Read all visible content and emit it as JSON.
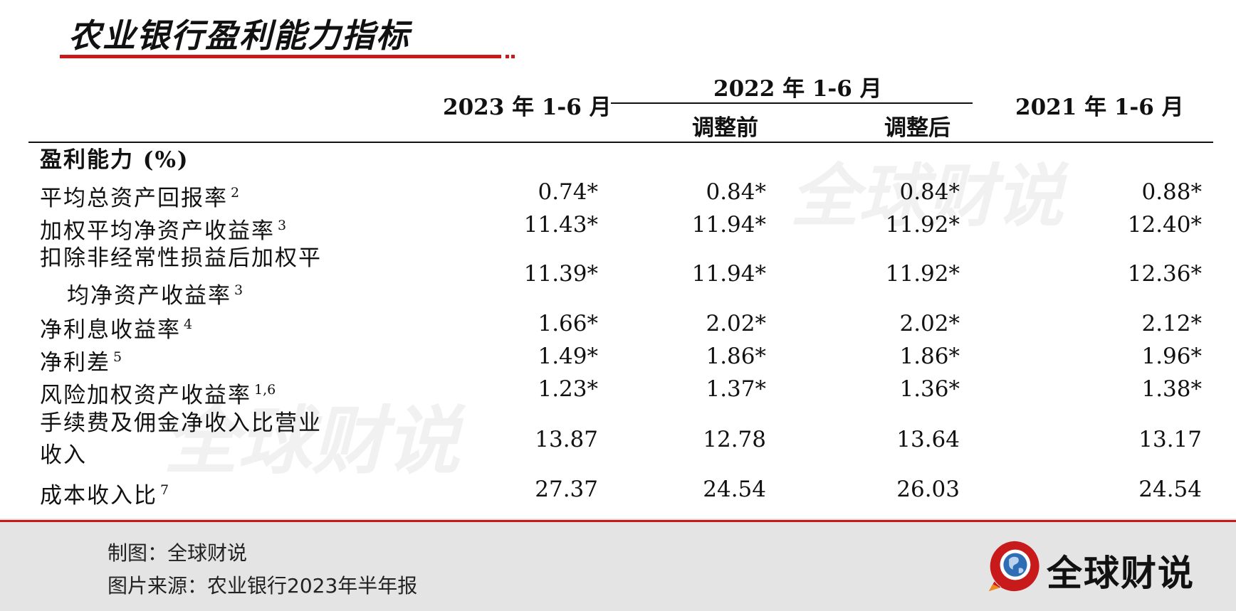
{
  "title": "农业银行盈利能力指标",
  "watermark": "全球财说",
  "table": {
    "col_2023": "2023 年 1-6 月",
    "col_2022": "2022 年 1-6 月",
    "col_2022_before": "调整前",
    "col_2022_after": "调整后",
    "col_2021": "2021 年 1-6 月",
    "section": "盈利能力 (%)",
    "rows": [
      {
        "label": "平均总资产回报率",
        "note": "2",
        "v2023": "0.74*",
        "v2022_before": "0.84*",
        "v2022_after": "0.84*",
        "v2021": "0.88*"
      },
      {
        "label": "加权平均净资产收益率",
        "note": "3",
        "v2023": "11.43*",
        "v2022_before": "11.94*",
        "v2022_after": "11.92*",
        "v2021": "12.40*"
      },
      {
        "label_line1": "扣除非经常性损益后加权平",
        "label_line2": "均净资产收益率",
        "note": "3",
        "v2023": "11.39*",
        "v2022_before": "11.94*",
        "v2022_after": "11.92*",
        "v2021": "12.36*"
      },
      {
        "label": "净利息收益率",
        "note": "4",
        "v2023": "1.66*",
        "v2022_before": "2.02*",
        "v2022_after": "2.02*",
        "v2021": "2.12*"
      },
      {
        "label": "净利差",
        "note": "5",
        "v2023": "1.49*",
        "v2022_before": "1.86*",
        "v2022_after": "1.86*",
        "v2021": "1.96*"
      },
      {
        "label": "风险加权资产收益率",
        "note": "1,6",
        "v2023": "1.23*",
        "v2022_before": "1.37*",
        "v2022_after": "1.36*",
        "v2021": "1.38*"
      },
      {
        "label_line1": "手续费及佣金净收入比营业",
        "label_line2": "收入",
        "v2023": "13.87",
        "v2022_before": "12.78",
        "v2022_after": "13.64",
        "v2021": "13.17"
      },
      {
        "label": "成本收入比",
        "note": "7",
        "v2023": "27.37",
        "v2022_before": "24.54",
        "v2022_after": "26.03",
        "v2021": "24.54"
      }
    ]
  },
  "footer": {
    "maker": "制图：全球财说",
    "source": "图片来源：农业银行2023年半年报",
    "logo_text": "全球财说"
  },
  "colors": {
    "accent": "#c8191b",
    "footer_bg": "#e4e4e4"
  }
}
